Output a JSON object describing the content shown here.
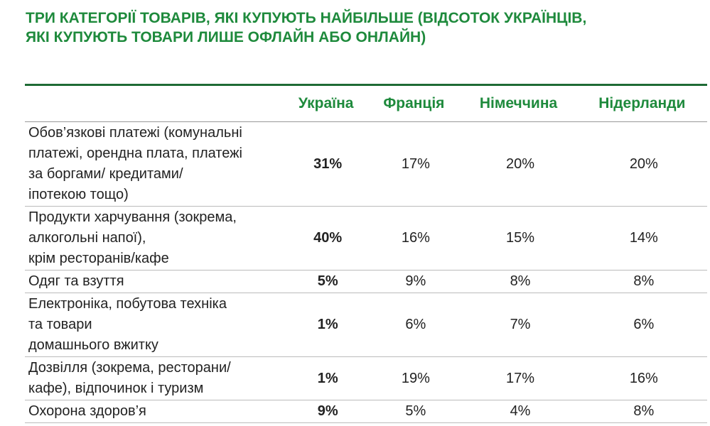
{
  "header": {
    "title": [
      "ТРИ КАТЕГОРІЇ ТОВАРІВ, ЯКІ КУПУЮТЬ НАЙБІЛЬШЕ (ВІДСОТОК УКРАЇНЦІВ,",
      "ЯКІ КУПУЮТЬ ТОВАРИ ЛИШЕ ОФЛАЙН АБО ОНЛАЙН)"
    ]
  },
  "table": {
    "columns": [
      "Україна",
      "Франція",
      "Німеччина",
      "Нідерланди"
    ],
    "rows": [
      {
        "label": [
          "Обов’язкові платежі (комунальні",
          "платежі, орендна плата, платежі",
          "за боргами/ кредитами/",
          "іпотекою тощо)"
        ],
        "values": [
          "31%",
          "17%",
          "20%",
          "20%"
        ]
      },
      {
        "label": [
          "Продукти харчування (зокрема,",
          "алкогольні напої),",
          "крім ресторанів/кафе"
        ],
        "values": [
          "40%",
          "16%",
          "15%",
          "14%"
        ]
      },
      {
        "label": [
          "Одяг та взуття"
        ],
        "values": [
          "5%",
          "9%",
          "8%",
          "8%"
        ]
      },
      {
        "label": [
          "Електроніка, побутова техніка",
          "та товари",
          "домашнього вжитку"
        ],
        "values": [
          "1%",
          "6%",
          "7%",
          "6%"
        ]
      },
      {
        "label": [
          "Дозвілля (зокрема, ресторани/",
          "кафе), відпочинок і туризм"
        ],
        "values": [
          "1%",
          "19%",
          "17%",
          "16%"
        ]
      },
      {
        "label": [
          "Охорона здоров’я"
        ],
        "values": [
          "9%",
          "5%",
          "4%",
          "8%"
        ]
      }
    ]
  }
}
